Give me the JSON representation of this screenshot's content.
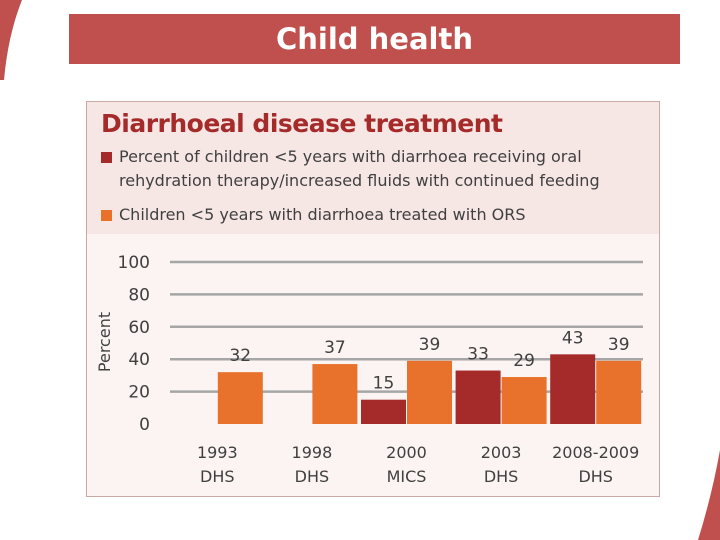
{
  "page": {
    "title": "Child health"
  },
  "colors": {
    "title_bar": "#c0504d",
    "series_1": "#a52a2a",
    "series_2": "#e8722c",
    "grid": "#a6a6a6"
  },
  "chart_data": {
    "type": "bar",
    "title": "Diarrhoeal disease treatment",
    "ylabel": "Percent",
    "xlabel": "",
    "ylim": [
      0,
      100
    ],
    "yticks": [
      "0",
      "20",
      "40",
      "60",
      "80",
      "100"
    ],
    "grid": true,
    "legend_position": "top",
    "categories": [
      {
        "line1": "1993",
        "line2": "DHS"
      },
      {
        "line1": "1998",
        "line2": "DHS"
      },
      {
        "line1": "2000",
        "line2": "MICS"
      },
      {
        "line1": "2003",
        "line2": "DHS"
      },
      {
        "line1": "2008-2009",
        "line2": "DHS"
      }
    ],
    "series": [
      {
        "name": "Percent of children <5 years with diarrhoea receiving oral rehydration therapy/increased fluids with continued feeding",
        "color": "#a52a2a",
        "values": [
          null,
          null,
          15,
          33,
          43
        ]
      },
      {
        "name": "Children <5 years with diarrhoea treated with ORS",
        "color": "#e8722c",
        "values": [
          32,
          37,
          39,
          29,
          39
        ]
      }
    ]
  }
}
